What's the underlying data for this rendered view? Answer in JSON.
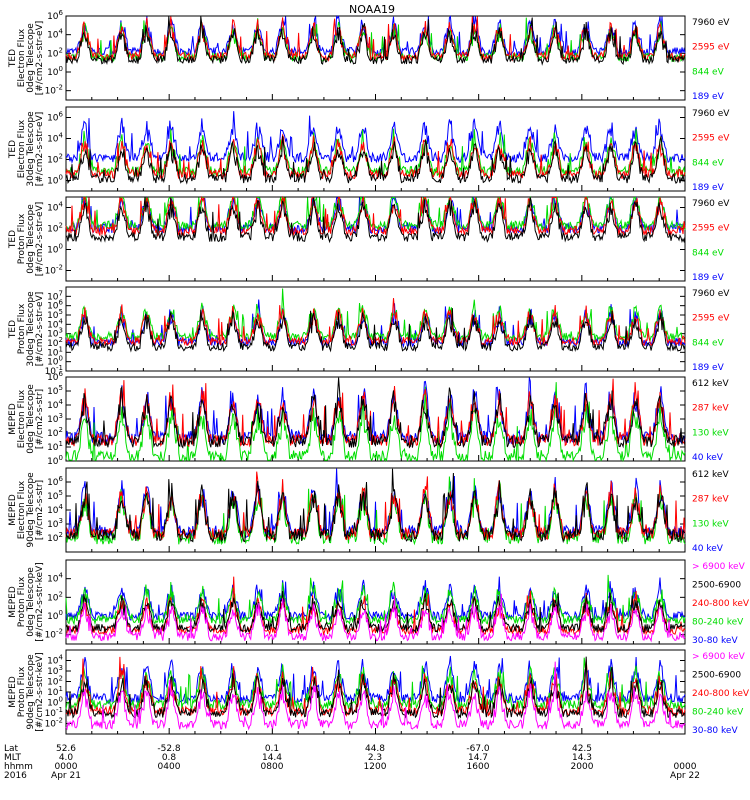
{
  "title": "NOAA19",
  "colors": {
    "blue": "#0000ff",
    "red": "#ff0000",
    "green": "#00dd00",
    "black": "#000000",
    "magenta": "#ff00ff"
  },
  "chart_data": [
    {
      "type": "line",
      "ylabel": [
        "TED",
        "Electron Flux",
        "0deg Telescope",
        "[#/cm2-s-str-eV]"
      ],
      "ylim": [
        0.001,
        1000000
      ],
      "yticks": [
        "10^6",
        "10^4",
        "10^2",
        "10^0",
        "10^-2"
      ],
      "series": [
        {
          "name": "7960 eV",
          "color": "#000000",
          "level": 1.3
        },
        {
          "name": "2595 eV",
          "color": "#ff0000",
          "level": 1.7
        },
        {
          "name": "844 eV",
          "color": "#00dd00",
          "level": 1.6
        },
        {
          "name": "189 eV",
          "color": "#0000ff",
          "level": 2.2
        }
      ]
    },
    {
      "type": "line",
      "ylabel": [
        "TED",
        "Electron Flux",
        "30deg Telescope",
        "[#/cm2-s-str-eV]"
      ],
      "ylim": [
        0.1,
        10000000
      ],
      "yticks": [
        "10^6",
        "10^4",
        "10^2",
        "10^0"
      ],
      "series": [
        {
          "name": "7960 eV",
          "color": "#000000",
          "level": 0.2
        },
        {
          "name": "2595 eV",
          "color": "#ff0000",
          "level": 0.6
        },
        {
          "name": "844 eV",
          "color": "#00dd00",
          "level": 0.9
        },
        {
          "name": "189 eV",
          "color": "#0000ff",
          "level": 2.2
        }
      ]
    },
    {
      "type": "line",
      "ylabel": [
        "TED",
        "Proton Flux",
        "0deg Telescope",
        "[#/cm2-s-str-eV]"
      ],
      "ylim": [
        0.001,
        100000
      ],
      "yticks": [
        "10^4",
        "10^2",
        "10^0",
        "10^-2"
      ],
      "series": [
        {
          "name": "7960 eV",
          "color": "#000000",
          "level": 1.2
        },
        {
          "name": "2595 eV",
          "color": "#ff0000",
          "level": 1.8
        },
        {
          "name": "844 eV",
          "color": "#00dd00",
          "level": 2.3
        },
        {
          "name": "189 eV",
          "color": "#0000ff",
          "level": 2.0
        }
      ]
    },
    {
      "type": "line",
      "ylabel": [
        "TED",
        "Proton Flux",
        "30deg Telescope",
        "[#/cm2-s-str-eV]"
      ],
      "ylim": [
        0.1,
        100000000
      ],
      "yticks": [
        "10^7",
        "10^6",
        "10^5",
        "10^4",
        "10^3",
        "10^2",
        "10^1",
        "10^0",
        "10^-1"
      ],
      "series": [
        {
          "name": "7960 eV",
          "color": "#000000",
          "level": 1.6
        },
        {
          "name": "2595 eV",
          "color": "#ff0000",
          "level": 2.2
        },
        {
          "name": "844 eV",
          "color": "#00dd00",
          "level": 2.7
        },
        {
          "name": "189 eV",
          "color": "#0000ff",
          "level": 2.1
        }
      ]
    },
    {
      "type": "line",
      "ylabel": [
        "MEPED",
        "Electron Flux",
        "0deg Telescope",
        "[#/cm2-s-str]"
      ],
      "ylim": [
        1,
        1000000
      ],
      "yticks": [
        "10^6",
        "10^5",
        "10^4",
        "10^3",
        "10^2",
        "10^1",
        "10^0"
      ],
      "series": [
        {
          "name": "612 keV",
          "color": "#000000",
          "level": 1.4
        },
        {
          "name": "287 keV",
          "color": "#ff0000",
          "level": 1.5
        },
        {
          "name": "130 keV",
          "color": "#00dd00",
          "level": 0.3
        },
        {
          "name": "40 keV",
          "color": "#0000ff",
          "level": 1.7
        }
      ]
    },
    {
      "type": "line",
      "ylabel": [
        "MEPED",
        "Electron Flux",
        "90deg Telescope",
        "[#/cm2-s-str]"
      ],
      "ylim": [
        10,
        10000000
      ],
      "yticks": [
        "10^6",
        "10^5",
        "10^4",
        "10^3",
        "10^2"
      ],
      "series": [
        {
          "name": "612 keV",
          "color": "#000000",
          "level": 2.2
        },
        {
          "name": "287 keV",
          "color": "#ff0000",
          "level": 2.3
        },
        {
          "name": "130 keV",
          "color": "#00dd00",
          "level": 2.0
        },
        {
          "name": "40 keV",
          "color": "#0000ff",
          "level": 2.5
        }
      ]
    },
    {
      "type": "line",
      "ylabel": [
        "MEPED",
        "Proton Flux",
        "0deg Telescope",
        "[#/cm2-s-str-keV]"
      ],
      "ylim": [
        0.001,
        1000000
      ],
      "yticks": [
        "10^4",
        "10^2",
        "10^0",
        "10^-2"
      ],
      "series": [
        {
          "name": "> 6900 keV",
          "color": "#ff00ff",
          "level": -2.2
        },
        {
          "name": "2500-6900",
          "color": "#000000",
          "level": -1.3
        },
        {
          "name": "240-800 keV",
          "color": "#ff0000",
          "level": -1.5
        },
        {
          "name": "80-240 keV",
          "color": "#00dd00",
          "level": -0.4
        },
        {
          "name": "30-80 keV",
          "color": "#0000ff",
          "level": 0.0
        }
      ]
    },
    {
      "type": "line",
      "ylabel": [
        "MEPED",
        "Proton Flux",
        "90deg Telescope",
        "[#/cm2-s-str-keV]"
      ],
      "ylim": [
        0.001,
        100000
      ],
      "yticks": [
        "10^4",
        "10^3",
        "10^2",
        "10^1",
        "10^0",
        "10^-1",
        "10^-2"
      ],
      "series": [
        {
          "name": "> 6900 keV",
          "color": "#ff00ff",
          "level": -2.1
        },
        {
          "name": "2500-6900",
          "color": "#000000",
          "level": -1.0
        },
        {
          "name": "240-800 keV",
          "color": "#ff0000",
          "level": -0.8
        },
        {
          "name": "80-240 keV",
          "color": "#00dd00",
          "level": -0.2
        },
        {
          "name": "30-80 keV",
          "color": "#0000ff",
          "level": 0.4
        }
      ]
    }
  ],
  "axis_rows": [
    {
      "label": "Lat",
      "values": [
        "52.6",
        "-52.8",
        "0.1",
        "44.8",
        "-67.0",
        "42.5",
        ""
      ]
    },
    {
      "label": "MLT",
      "values": [
        "4.0",
        "0.8",
        "14.4",
        "2.3",
        "14.7",
        "14.3",
        ""
      ]
    },
    {
      "label": "hhmm",
      "values": [
        "0000",
        "0400",
        "0800",
        "1200",
        "1600",
        "2000",
        "0000"
      ]
    },
    {
      "label": "2016",
      "values": [
        "Apr 21",
        "",
        "",
        "",
        "",
        "",
        "Apr 22"
      ]
    }
  ]
}
